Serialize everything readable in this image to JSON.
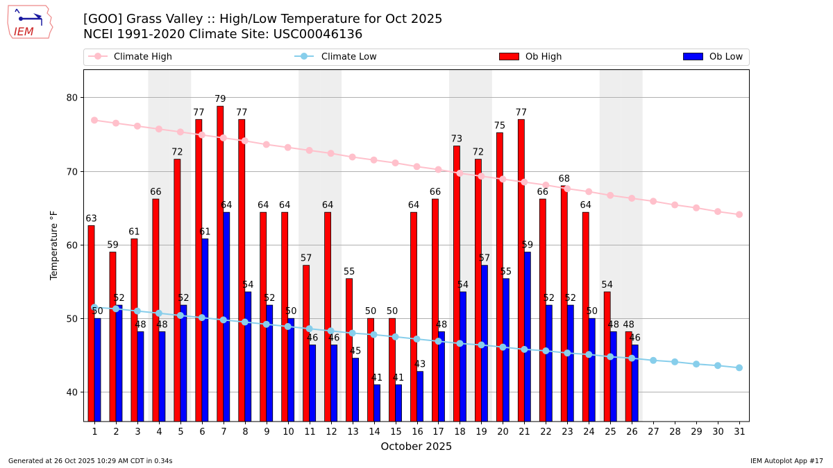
{
  "header": {
    "title_line1": "[GOO] Grass Valley :: High/Low Temperature for Oct 2025",
    "title_line2": "NCEI 1991-2020 Climate Site: USC00046136",
    "logo_text": "IEM"
  },
  "footer": {
    "generated": "Generated at 26 Oct 2025 10:29 AM CDT in 0.34s",
    "app": "IEM Autoplot App #17"
  },
  "colors": {
    "ob_high": "#ff0000",
    "ob_low": "#0000ff",
    "climate_high": "#ffc0cb",
    "climate_low": "#87ceeb",
    "weekend_shade": "#eeeeee",
    "grid": "#b0b0b0"
  },
  "chart_data": {
    "type": "bar",
    "title": "[GOO] Grass Valley :: High/Low Temperature for Oct 2025",
    "subtitle": "NCEI 1991-2020 Climate Site: USC00046136",
    "xlabel": "October 2025",
    "ylabel": "Temperature °F",
    "ylim": [
      36,
      83.8
    ],
    "yticks": [
      40,
      50,
      60,
      70,
      80
    ],
    "grid": true,
    "legend": {
      "placement": "top",
      "entries": [
        "Climate High",
        "Climate Low",
        "Ob High",
        "Ob Low"
      ]
    },
    "shaded_days": [
      4,
      5,
      11,
      12,
      18,
      19,
      25,
      26
    ],
    "x": [
      1,
      2,
      3,
      4,
      5,
      6,
      7,
      8,
      9,
      10,
      11,
      12,
      13,
      14,
      15,
      16,
      17,
      18,
      19,
      20,
      21,
      22,
      23,
      24,
      25,
      26,
      27,
      28,
      29,
      30,
      31
    ],
    "series": [
      {
        "name": "Ob High",
        "kind": "bar",
        "values": [
          63,
          59,
          61,
          66,
          72,
          77,
          79,
          77,
          64,
          64,
          57,
          64,
          55,
          50,
          50,
          64,
          66,
          73,
          72,
          75,
          77,
          66,
          68,
          64,
          54,
          48,
          null,
          null,
          null,
          null,
          null
        ],
        "plotted": [
          62.6,
          59.0,
          60.8,
          66.2,
          71.6,
          77.0,
          78.8,
          77.0,
          64.4,
          64.4,
          57.2,
          64.4,
          55.4,
          50.0,
          50.0,
          64.4,
          66.2,
          73.4,
          71.6,
          75.2,
          77.0,
          66.2,
          68.0,
          64.4,
          53.6,
          48.2,
          null,
          null,
          null,
          null,
          null
        ]
      },
      {
        "name": "Ob Low",
        "kind": "bar",
        "values": [
          50,
          52,
          48,
          48,
          52,
          61,
          64,
          54,
          52,
          50,
          46,
          46,
          45,
          41,
          41,
          43,
          48,
          54,
          57,
          55,
          59,
          52,
          52,
          50,
          48,
          46,
          null,
          null,
          null,
          null,
          null
        ],
        "plotted": [
          50.0,
          51.8,
          48.2,
          48.2,
          51.8,
          60.8,
          64.4,
          53.6,
          51.8,
          50.0,
          46.4,
          46.4,
          44.6,
          41.0,
          41.0,
          42.8,
          48.2,
          53.6,
          57.2,
          55.4,
          59.0,
          51.8,
          51.8,
          50.0,
          48.2,
          46.4,
          null,
          null,
          null,
          null,
          null
        ]
      },
      {
        "name": "Climate High",
        "kind": "line",
        "values": [
          76.9,
          76.5,
          76.1,
          75.7,
          75.3,
          74.9,
          74.5,
          74.1,
          73.6,
          73.2,
          72.8,
          72.4,
          71.9,
          71.5,
          71.1,
          70.6,
          70.2,
          69.7,
          69.3,
          68.9,
          68.5,
          68.1,
          67.6,
          67.2,
          66.7,
          66.3,
          65.9,
          65.4,
          65.0,
          64.5,
          64.1
        ]
      },
      {
        "name": "Climate Low",
        "kind": "line",
        "values": [
          51.5,
          51.3,
          51.0,
          50.7,
          50.4,
          50.1,
          49.8,
          49.5,
          49.2,
          48.9,
          48.6,
          48.3,
          48.0,
          47.8,
          47.5,
          47.2,
          46.9,
          46.6,
          46.4,
          46.1,
          45.8,
          45.6,
          45.3,
          45.1,
          44.8,
          44.6,
          44.3,
          44.1,
          43.8,
          43.6,
          43.3
        ]
      }
    ]
  }
}
